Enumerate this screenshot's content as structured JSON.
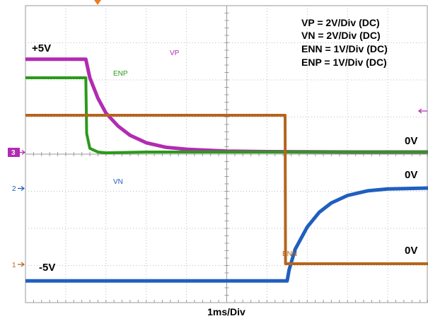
{
  "chart_data": {
    "type": "line",
    "title": "",
    "xlabel": "1ms/Div",
    "ylabel": "",
    "x_unit": "ms",
    "x_range": [
      0,
      10
    ],
    "scale_box": [
      "VP = 2V/Div (DC)",
      "VN = 2V/Div (DC)",
      "ENN = 1V/Div (DC)",
      "ENP = 1V/Div (DC)"
    ],
    "level_labels": {
      "plus5": "+5V",
      "zero_top": "0V",
      "zero_vn": "0V",
      "zero_enn": "0V",
      "minus5": "-5V"
    },
    "channel_markers": {
      "ch3": "3",
      "ch2": "2",
      "ch1": "1"
    },
    "grid": true,
    "series": [
      {
        "name": "VP",
        "color": "#b22bb2",
        "unit": "V",
        "x": [
          0,
          0.5,
          1.5,
          1.6,
          1.8,
          2.0,
          2.3,
          2.6,
          3.0,
          3.5,
          4.0,
          5.0,
          6.0,
          8.0,
          10.0
        ],
        "y": [
          5.0,
          5.0,
          5.0,
          4.0,
          2.9,
          2.1,
          1.4,
          0.9,
          0.5,
          0.25,
          0.15,
          0.05,
          0.02,
          0.0,
          0.0
        ]
      },
      {
        "name": "ENP",
        "color": "#2a9a1a",
        "unit": "V",
        "x": [
          0,
          1.5,
          1.52,
          1.6,
          1.8,
          2.0,
          3.0,
          10.0
        ],
        "y": [
          2.0,
          2.0,
          0.5,
          0.1,
          0.0,
          -0.02,
          0.0,
          0.0
        ]
      },
      {
        "name": "VN",
        "color": "#1f5fbf",
        "unit": "V",
        "x": [
          0,
          6.5,
          6.55,
          6.7,
          7.0,
          7.3,
          7.6,
          8.0,
          8.5,
          9.0,
          10.0
        ],
        "y": [
          -5.0,
          -5.0,
          -4.4,
          -3.3,
          -2.1,
          -1.3,
          -0.8,
          -0.4,
          -0.15,
          -0.05,
          0.0
        ]
      },
      {
        "name": "ENN",
        "color": "#b5651d",
        "unit": "V",
        "x": [
          0,
          6.45,
          6.46,
          10.0
        ],
        "y": [
          4.0,
          4.0,
          0.0,
          0.0
        ]
      }
    ]
  }
}
